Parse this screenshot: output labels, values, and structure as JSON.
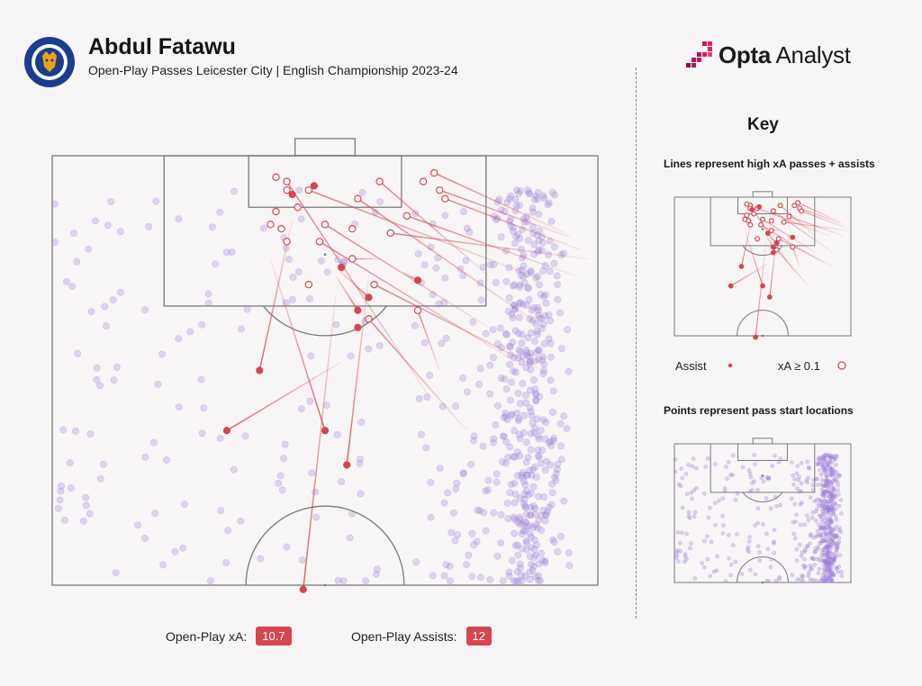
{
  "header": {
    "player": "Abdul Fatawu",
    "subtitle": "Open-Play Passes Leicester City | English Championship 2023-24",
    "crest_text": "LEICESTER CITY FOOTBALL CLUB",
    "brand_strong": "Opta",
    "brand_rest": " Analyst"
  },
  "stats": {
    "xa_label": "Open-Play xA:",
    "xa_value": "10.7",
    "assists_label": "Open-Play Assists:",
    "assists_value": "12"
  },
  "key": {
    "title": "Key",
    "lines_caption": "Lines represent high xA passes + assists",
    "points_caption": "Points represent pass start locations",
    "legend_assist": "Assist",
    "legend_xa": "xA ≥ 0.1"
  },
  "colors": {
    "assist": "#d64550",
    "pass_point": "#9b7fd8",
    "pitch_line": "#7a7a7a",
    "badge": "#d64550"
  },
  "chart_data": {
    "type": "scatter",
    "description_units": "pitch coordinates: x = across width (0 left touchline to 100 right), y = distance from attacked goal line (0 to 50, halfway line)",
    "assists": [
      {
        "start": [
          46,
          50.5
        ],
        "end": [
          52,
          16
        ]
      },
      {
        "start": [
          32,
          32
        ],
        "end": [
          53,
          24
        ]
      },
      {
        "start": [
          50,
          32
        ],
        "end": [
          40,
          12
        ]
      },
      {
        "start": [
          38,
          25
        ],
        "end": [
          44,
          7.5
        ]
      },
      {
        "start": [
          54,
          36
        ],
        "end": [
          58,
          14
        ]
      },
      {
        "start": [
          56,
          18
        ],
        "end": [
          52,
          14
        ]
      },
      {
        "start": [
          58,
          16.5
        ],
        "end": [
          52,
          13
        ]
      },
      {
        "start": [
          56,
          20
        ],
        "end": [
          57,
          20
        ]
      },
      {
        "start": [
          67,
          14.5
        ],
        "end": [
          64,
          13.5
        ]
      },
      {
        "start": [
          53,
          13
        ],
        "end": [
          54,
          13
        ]
      },
      {
        "start": [
          48,
          3.5
        ],
        "end": [
          49,
          3.5
        ]
      },
      {
        "start": [
          44,
          4.5
        ],
        "end": [
          44,
          4.5
        ]
      }
    ],
    "high_xa": [
      {
        "start": [
          59,
          15
        ],
        "end": [
          90,
          25
        ]
      },
      {
        "start": [
          70,
          2
        ],
        "end": [
          94,
          9
        ]
      },
      {
        "start": [
          71,
          4
        ],
        "end": [
          95,
          9.5
        ]
      },
      {
        "start": [
          72,
          5
        ],
        "end": [
          97,
          11
        ]
      },
      {
        "start": [
          60,
          3
        ],
        "end": [
          80,
          14
        ]
      },
      {
        "start": [
          65,
          7
        ],
        "end": [
          96,
          14
        ]
      },
      {
        "start": [
          62,
          9
        ],
        "end": [
          98,
          12
        ]
      },
      {
        "start": [
          47,
          4
        ],
        "end": [
          88,
          14
        ]
      },
      {
        "start": [
          56,
          5
        ],
        "end": [
          90,
          20
        ]
      },
      {
        "start": [
          43,
          3
        ],
        "end": [
          69,
          28
        ]
      },
      {
        "start": [
          50,
          8
        ],
        "end": [
          80,
          20
        ]
      },
      {
        "start": [
          49,
          10
        ],
        "end": [
          85,
          24
        ]
      },
      {
        "start": [
          55,
          12
        ],
        "end": [
          60,
          12
        ]
      },
      {
        "start": [
          58,
          19
        ],
        "end": [
          76,
          32
        ]
      },
      {
        "start": [
          67,
          18
        ],
        "end": [
          71,
          25
        ]
      },
      {
        "start": [
          43,
          4
        ],
        "end": [
          43,
          4
        ]
      },
      {
        "start": [
          41,
          2.5
        ],
        "end": [
          41,
          2.5
        ]
      },
      {
        "start": [
          40,
          8
        ],
        "end": [
          40,
          8
        ]
      },
      {
        "start": [
          42,
          8.5
        ],
        "end": [
          42,
          8.5
        ]
      },
      {
        "start": [
          68,
          3
        ],
        "end": [
          68,
          3
        ]
      },
      {
        "start": [
          41,
          6.5
        ],
        "end": [
          41,
          6.5
        ]
      },
      {
        "start": [
          45,
          6
        ],
        "end": [
          45,
          6
        ]
      },
      {
        "start": [
          55,
          8.5
        ],
        "end": [
          55,
          8.5
        ]
      },
      {
        "start": [
          47,
          15
        ],
        "end": [
          47,
          15
        ]
      },
      {
        "start": [
          43,
          10
        ],
        "end": [
          43,
          10
        ]
      }
    ]
  }
}
